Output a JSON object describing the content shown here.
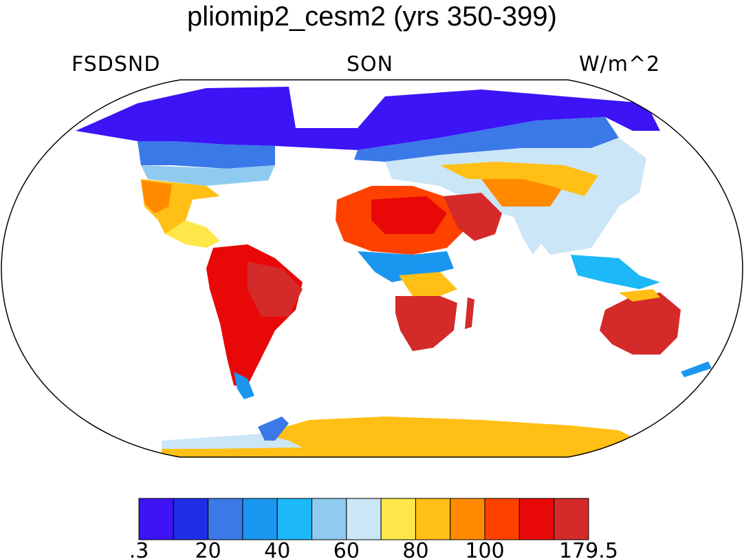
{
  "title": "pliomip2_cesm2 (yrs 350-399)",
  "left_label": "FSDSND",
  "center_label": "SON",
  "right_label": "W/m^2",
  "colorbar": {
    "colors": [
      "#3c14f5",
      "#1e2ee6",
      "#3b78e8",
      "#1a96f0",
      "#1cb8f7",
      "#8ecbee",
      "#cbe6f6",
      "#ffe74a",
      "#ffbf14",
      "#ff8a00",
      "#ff4100",
      "#e80808",
      "#d42a2a"
    ],
    "tick_labels": [
      ".3",
      "20",
      "40",
      "60",
      "80",
      "100",
      "179.5"
    ]
  },
  "regions": [
    {
      "name": "north-polar-band",
      "color": "#3c14f5"
    },
    {
      "name": "subpolar-band",
      "color": "#3b78e8"
    },
    {
      "name": "mid-latitude-band",
      "color": "#8ecbee"
    },
    {
      "name": "north-africa",
      "color": "#ff4100"
    },
    {
      "name": "arabia",
      "color": "#d42a2a"
    },
    {
      "name": "south-america",
      "color": "#e80808"
    },
    {
      "name": "southern-africa",
      "color": "#d42a2a"
    },
    {
      "name": "australia",
      "color": "#d42a2a"
    },
    {
      "name": "antarctica",
      "color": "#ffbf14"
    }
  ]
}
